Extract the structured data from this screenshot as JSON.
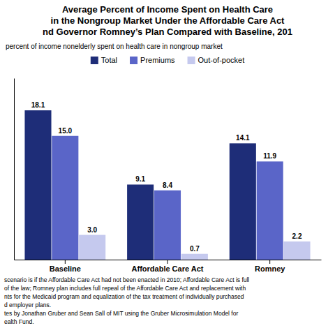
{
  "chart_data": {
    "type": "bar",
    "title": "Average Percent of Income Spent on Health Care\nin the Nongroup Market Under the Affordable Care Act\nnd Governor Romney’s Plan Compared with Baseline, 201",
    "subtitle": "percent of income nonelderly spent on health care in nongroup market",
    "categories": [
      "Baseline",
      "Affordable Care Act",
      "Romney"
    ],
    "series": [
      {
        "name": "Total",
        "color": "#1e2d78",
        "values": [
          18.1,
          9.1,
          14.1
        ],
        "value_labels": [
          "18.1",
          "9.1",
          "14.1"
        ]
      },
      {
        "name": "Premiums",
        "color": "#5a65c8",
        "values": [
          15.0,
          8.4,
          11.9
        ],
        "value_labels": [
          "15.0",
          "8.4",
          "11.9"
        ]
      },
      {
        "name": "Out-of-pocket",
        "color": "#c5c9ee",
        "values": [
          3.0,
          0.7,
          2.2
        ],
        "value_labels": [
          "3.0",
          "0.7",
          "2.2"
        ]
      }
    ],
    "ylim": [
      0,
      22
    ],
    "tick_labels": "x",
    "data_labels": true,
    "legend": "top",
    "footnote": [
      "scenario is if the Affordable Care Act had not been enacted in 2010; Affordable Care Act is full",
      "of the law; Romney plan includes full repeal of the Affordable Care Act and replacement with",
      "nts for the Medicaid program and equalization of the tax treatment of individually purchased",
      "d employer plans.",
      "tes by Jonathan Gruber and Sean Sall of MIT using the Gruber Microsimulation Model for",
      "ealth Fund."
    ]
  }
}
